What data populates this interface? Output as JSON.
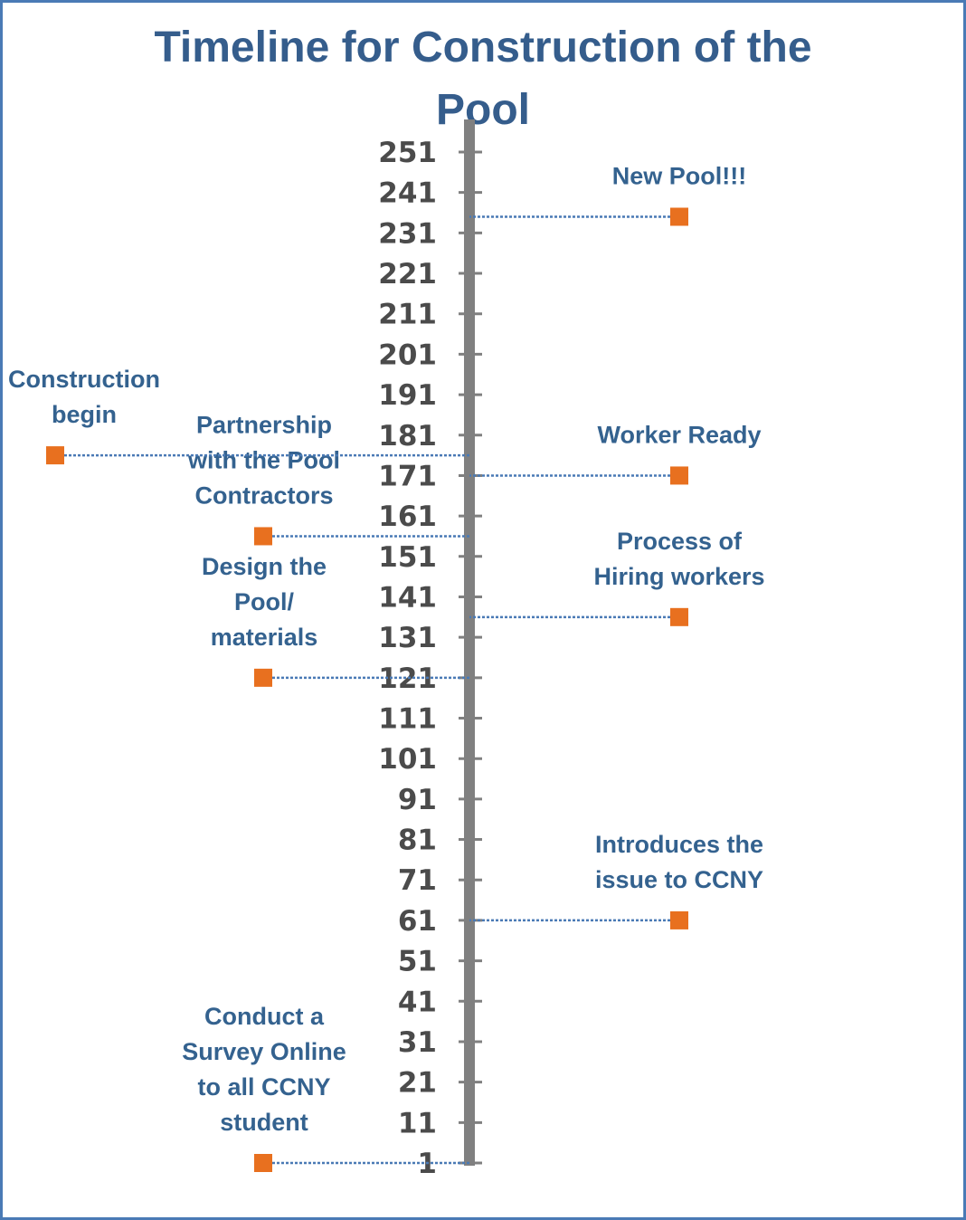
{
  "chart_data": {
    "type": "timeline",
    "title_lines": [
      "Timeline for Construction of the",
      "Pool"
    ],
    "axis": {
      "min": 1,
      "max": 251,
      "tick_step": 10,
      "ticks": [
        1,
        11,
        21,
        31,
        41,
        51,
        61,
        71,
        81,
        91,
        101,
        111,
        121,
        131,
        141,
        151,
        161,
        171,
        181,
        191,
        201,
        211,
        221,
        231,
        241,
        251
      ]
    },
    "events": [
      {
        "label_lines": [
          "Conduct a",
          "Survey Online",
          "to all CCNY",
          "student"
        ],
        "value": 1,
        "side": "left"
      },
      {
        "label_lines": [
          "Introduces the",
          "issue to CCNY"
        ],
        "value": 61,
        "side": "right"
      },
      {
        "label_lines": [
          "Design the",
          "Pool/",
          "materials"
        ],
        "value": 121,
        "side": "left"
      },
      {
        "label_lines": [
          "Process of",
          "Hiring workers"
        ],
        "value": 136,
        "side": "right"
      },
      {
        "label_lines": [
          "Partnership",
          "with the Pool",
          "Contractors"
        ],
        "value": 156,
        "side": "left"
      },
      {
        "label_lines": [
          "Worker Ready"
        ],
        "value": 171,
        "side": "right"
      },
      {
        "label_lines": [
          "Construction",
          "begin"
        ],
        "value": 176,
        "side": "far-left"
      },
      {
        "label_lines": [
          "New Pool!!!"
        ],
        "value": 235,
        "side": "right"
      }
    ],
    "colors": {
      "axis": "#808080",
      "marker": "#e8701f",
      "connector": "#4a7ab5",
      "label": "#34628f",
      "title": "#355d8c",
      "tick_label": "#4b4b4b"
    }
  }
}
